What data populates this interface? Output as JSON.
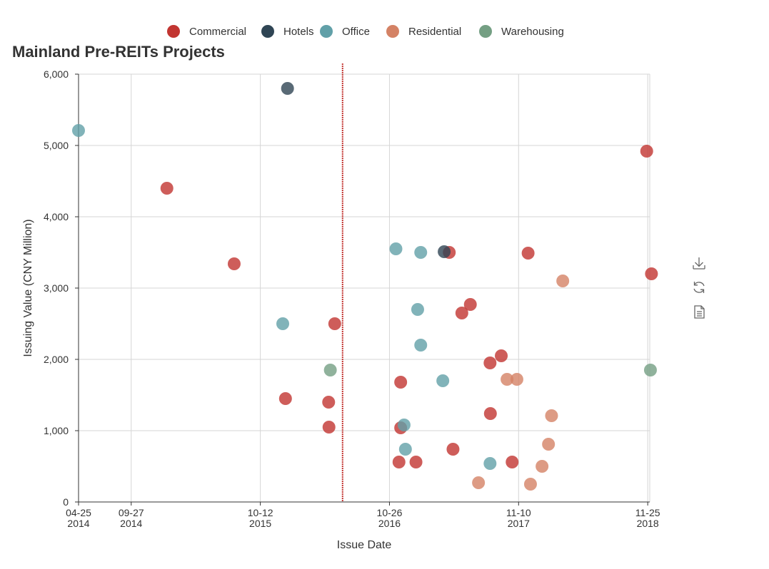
{
  "chart_data": {
    "type": "scatter",
    "title": "Mainland Pre-REITs Projects",
    "xlabel": "Issue Date",
    "ylabel": "Issuing Value (CNY Million)",
    "x_type": "date",
    "x_range": [
      "2014-04-25",
      "2018-12-01"
    ],
    "ylim": [
      0,
      6000
    ],
    "y_ticks": [
      "0",
      "1,000",
      "2,000",
      "3,000",
      "4,000",
      "5,000",
      "6,000"
    ],
    "x_ticks": [
      {
        "date": "2014-04-25",
        "line1": "04-25",
        "line2": "2014"
      },
      {
        "date": "2014-09-27",
        "line1": "09-27",
        "line2": "2014"
      },
      {
        "date": "2015-10-12",
        "line1": "10-12",
        "line2": "2015"
      },
      {
        "date": "2016-10-26",
        "line1": "10-26",
        "line2": "2016"
      },
      {
        "date": "2017-11-10",
        "line1": "11-10",
        "line2": "2017"
      },
      {
        "date": "2018-11-25",
        "line1": "11-25",
        "line2": "2018"
      }
    ],
    "grid": true,
    "legend_position": "top-center",
    "marker_line_date": "2016-06-10",
    "marker_line_color": "#c23531",
    "series": [
      {
        "name": "Commercial",
        "color": "#c23531",
        "points": [
          {
            "x": "2015-01-10",
            "y": 4400
          },
          {
            "x": "2015-07-27",
            "y": 3340
          },
          {
            "x": "2015-12-25",
            "y": 1450
          },
          {
            "x": "2016-04-30",
            "y": 1400
          },
          {
            "x": "2016-05-01",
            "y": 1050
          },
          {
            "x": "2016-05-18",
            "y": 2500
          },
          {
            "x": "2016-11-23",
            "y": 560
          },
          {
            "x": "2016-11-28",
            "y": 1680
          },
          {
            "x": "2016-11-28",
            "y": 1040
          },
          {
            "x": "2017-01-12",
            "y": 560
          },
          {
            "x": "2017-04-20",
            "y": 3500
          },
          {
            "x": "2017-05-01",
            "y": 740
          },
          {
            "x": "2017-05-27",
            "y": 2650
          },
          {
            "x": "2017-06-21",
            "y": 2770
          },
          {
            "x": "2017-08-18",
            "y": 1950
          },
          {
            "x": "2017-08-19",
            "y": 1240
          },
          {
            "x": "2017-09-20",
            "y": 2050
          },
          {
            "x": "2017-10-22",
            "y": 560
          },
          {
            "x": "2017-12-08",
            "y": 3490
          },
          {
            "x": "2018-11-22",
            "y": 4920
          },
          {
            "x": "2018-12-06",
            "y": 3200
          }
        ]
      },
      {
        "name": "Hotels",
        "color": "#2f4554",
        "points": [
          {
            "x": "2015-12-31",
            "y": 5800
          },
          {
            "x": "2017-04-05",
            "y": 3510
          }
        ]
      },
      {
        "name": "Office",
        "color": "#61a0a8",
        "points": [
          {
            "x": "2014-04-25",
            "y": 5210
          },
          {
            "x": "2015-12-17",
            "y": 2500
          },
          {
            "x": "2016-11-14",
            "y": 3550
          },
          {
            "x": "2016-12-08",
            "y": 1080
          },
          {
            "x": "2016-12-12",
            "y": 740
          },
          {
            "x": "2017-01-17",
            "y": 2700
          },
          {
            "x": "2017-01-26",
            "y": 2200
          },
          {
            "x": "2017-01-26",
            "y": 3500
          },
          {
            "x": "2017-04-01",
            "y": 1700
          },
          {
            "x": "2017-08-18",
            "y": 540
          }
        ]
      },
      {
        "name": "Residential",
        "color": "#d48265",
        "points": [
          {
            "x": "2017-07-15",
            "y": 270
          },
          {
            "x": "2017-10-07",
            "y": 1720
          },
          {
            "x": "2017-11-05",
            "y": 1720
          },
          {
            "x": "2017-12-15",
            "y": 250
          },
          {
            "x": "2018-01-18",
            "y": 500
          },
          {
            "x": "2018-02-06",
            "y": 810
          },
          {
            "x": "2018-02-15",
            "y": 1210
          },
          {
            "x": "2018-03-20",
            "y": 3100
          }
        ]
      },
      {
        "name": "Warehousing",
        "color": "#749f83",
        "points": [
          {
            "x": "2016-05-05",
            "y": 1850
          },
          {
            "x": "2018-12-03",
            "y": 1850
          }
        ]
      }
    ]
  },
  "toolbox": {
    "items": [
      {
        "name": "save-as-image",
        "icon": "download-icon"
      },
      {
        "name": "restore",
        "icon": "refresh-icon"
      },
      {
        "name": "data-view",
        "icon": "document-icon"
      }
    ]
  }
}
